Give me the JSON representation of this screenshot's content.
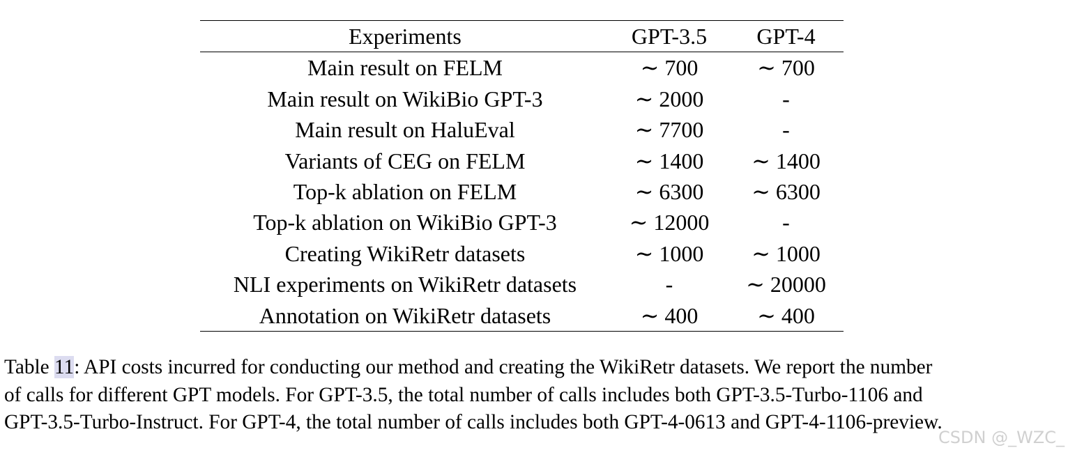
{
  "table": {
    "headers": [
      "Experiments",
      "GPT-3.5",
      "GPT-4"
    ],
    "rows": [
      [
        "Main result on FELM",
        "∼ 700",
        "∼ 700"
      ],
      [
        "Main result on WikiBio GPT-3",
        "∼ 2000",
        "-"
      ],
      [
        "Main result on HaluEval",
        "∼ 7700",
        "-"
      ],
      [
        "Variants of CEG on FELM",
        "∼ 1400",
        "∼ 1400"
      ],
      [
        "Top-k ablation on FELM",
        "∼ 6300",
        "∼ 6300"
      ],
      [
        "Top-k ablation on WikiBio GPT-3",
        "∼ 12000",
        "-"
      ],
      [
        "Creating WikiRetr datasets",
        "∼ 1000",
        "∼ 1000"
      ],
      [
        "NLI experiments on WikiRetr datasets",
        "-",
        "∼ 20000"
      ],
      [
        "Annotation on WikiRetr datasets",
        "∼ 400",
        "∼ 400"
      ]
    ]
  },
  "caption": {
    "prefix": "Table ",
    "number": "11",
    "line1": ": API costs incurred for conducting our method and creating the WikiRetr datasets. We report the number",
    "line2": "of calls for different GPT models. For GPT-3.5, the total number of calls includes both GPT-3.5-Turbo-1106 and",
    "line3": "GPT-3.5-Turbo-Instruct. For GPT-4, the total number of calls includes both GPT-4-0613 and GPT-4-1106-preview."
  },
  "watermark": "CSDN @_WZC_"
}
